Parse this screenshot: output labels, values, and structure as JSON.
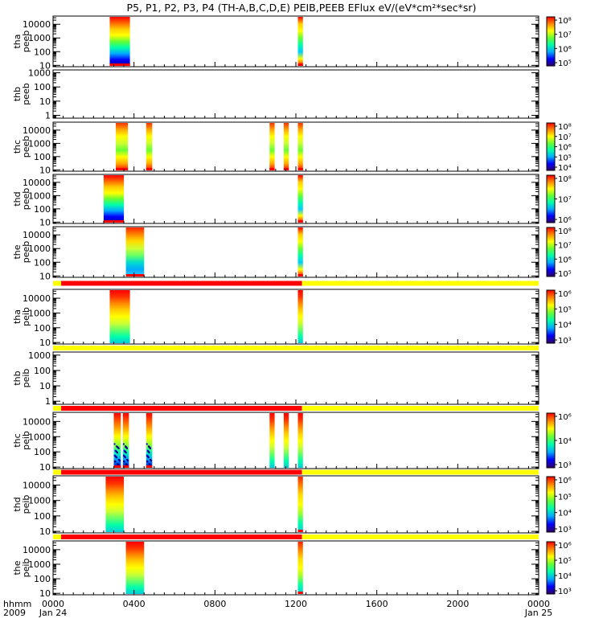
{
  "chart_data": {
    "type": "heatmap",
    "title": "P5, P1, P2, P3, P4 (TH-A,B,C,D,E) PEIB,PEEB EFlux eV/(eV*cm²*sec*sr)",
    "x_axis": {
      "label_prefix": "hhmm",
      "label_year": "2009",
      "range_hours": [
        0,
        24
      ],
      "ticks": [
        {
          "h": 0,
          "label": "0000",
          "sub": "Jan 24"
        },
        {
          "h": 4,
          "label": "0400",
          "sub": ""
        },
        {
          "h": 8,
          "label": "0800",
          "sub": ""
        },
        {
          "h": 12,
          "label": "1200",
          "sub": ""
        },
        {
          "h": 16,
          "label": "1600",
          "sub": ""
        },
        {
          "h": 20,
          "label": "2000",
          "sub": ""
        },
        {
          "h": 24,
          "label": "0000",
          "sub": "Jan 25"
        }
      ]
    },
    "colormap": [
      "#330066",
      "#0000ff",
      "#00aaff",
      "#00ffaa",
      "#66ff33",
      "#ffff00",
      "#ff8800",
      "#ff0000"
    ],
    "panels": [
      {
        "probe": "tha",
        "instrument": "peeb",
        "y_ticks": [
          "10000",
          "1000",
          "100",
          "10"
        ],
        "y_log_range": [
          0.9,
          4.6
        ],
        "colorbar": [
          "10⁸",
          "10⁷",
          "10⁶",
          "10⁵"
        ],
        "blocks": [
          {
            "t0": 2.8,
            "t1": 3.8,
            "style": "electron_grad"
          },
          {
            "t0": 12.1,
            "t1": 12.35,
            "style": "electron_narrow"
          }
        ],
        "flag_bar": null
      },
      {
        "probe": "thb",
        "instrument": "peeb",
        "y_ticks": [
          "1000",
          "100",
          "10",
          "1"
        ],
        "y_log_range": [
          -0.2,
          3.2
        ],
        "colorbar": null,
        "blocks": [],
        "flag_bar": null
      },
      {
        "probe": "thc",
        "instrument": "peeb",
        "y_ticks": [
          "10000",
          "1000",
          "100",
          "10"
        ],
        "y_log_range": [
          0.9,
          4.6
        ],
        "colorbar": [
          "10⁸",
          "10⁷",
          "10⁶",
          "10⁵",
          "10⁴"
        ],
        "blocks": [
          {
            "t0": 3.1,
            "t1": 3.7,
            "style": "electron_band"
          },
          {
            "t0": 4.6,
            "t1": 4.9,
            "style": "electron_band"
          },
          {
            "t0": 10.7,
            "t1": 10.95,
            "style": "electron_band"
          },
          {
            "t0": 11.4,
            "t1": 11.65,
            "style": "electron_band"
          },
          {
            "t0": 12.1,
            "t1": 12.35,
            "style": "electron_band"
          }
        ],
        "flag_bar": null
      },
      {
        "probe": "thd",
        "instrument": "peeb",
        "y_ticks": [
          "10000",
          "1000",
          "100",
          "10"
        ],
        "y_log_range": [
          0.9,
          4.6
        ],
        "colorbar": [
          "10⁸",
          "10⁷",
          "10⁶"
        ],
        "blocks": [
          {
            "t0": 2.5,
            "t1": 3.5,
            "style": "electron_grad"
          },
          {
            "t0": 12.1,
            "t1": 12.35,
            "style": "electron_narrow"
          }
        ],
        "flag_bar": null
      },
      {
        "probe": "the",
        "instrument": "peeb",
        "y_ticks": [
          "10000",
          "1000",
          "100",
          "10"
        ],
        "y_log_range": [
          0.9,
          4.6
        ],
        "colorbar": [
          "10⁸",
          "10⁷",
          "10⁶",
          "10⁵"
        ],
        "blocks": [
          {
            "t0": 3.6,
            "t1": 4.5,
            "style": "electron_soft"
          },
          {
            "t0": 12.1,
            "t1": 12.35,
            "style": "electron_narrow"
          }
        ],
        "flag_bar": {
          "segments": [
            {
              "t0": 0,
              "t1": 0.4,
              "color": "#ffff00"
            },
            {
              "t0": 0.4,
              "t1": 12.3,
              "color": "#ff0000"
            },
            {
              "t0": 12.3,
              "t1": 24,
              "color": "#ffff00"
            }
          ]
        }
      },
      {
        "probe": "tha",
        "instrument": "peib",
        "y_ticks": [
          "10000",
          "1000",
          "100",
          "10"
        ],
        "y_log_range": [
          0.9,
          4.6
        ],
        "colorbar": [
          "10⁶",
          "10⁵",
          "10⁴",
          "10³"
        ],
        "blocks": [
          {
            "t0": 2.8,
            "t1": 3.8,
            "style": "ion"
          },
          {
            "t0": 12.1,
            "t1": 12.35,
            "style": "ion"
          }
        ],
        "flag_bar": {
          "segments": [
            {
              "t0": 0,
              "t1": 24,
              "color": "#ffff00"
            }
          ]
        }
      },
      {
        "probe": "thb",
        "instrument": "peib",
        "y_ticks": [
          "1000",
          "100",
          "10",
          "1"
        ],
        "y_log_range": [
          -0.2,
          3.2
        ],
        "colorbar": null,
        "blocks": [],
        "flag_bar": {
          "segments": [
            {
              "t0": 0,
              "t1": 0.4,
              "color": "#ffff00"
            },
            {
              "t0": 0.4,
              "t1": 12.3,
              "color": "#ff0000"
            },
            {
              "t0": 12.3,
              "t1": 24,
              "color": "#ffff00"
            }
          ]
        }
      },
      {
        "probe": "thc",
        "instrument": "peib",
        "y_ticks": [
          "10000",
          "1000",
          "100",
          "10"
        ],
        "y_log_range": [
          0.9,
          4.6
        ],
        "colorbar": [
          "10⁶",
          "10⁴",
          "10³"
        ],
        "blocks": [
          {
            "t0": 3.0,
            "t1": 3.35,
            "style": "ion_speckle"
          },
          {
            "t0": 3.45,
            "t1": 3.75,
            "style": "ion_speckle"
          },
          {
            "t0": 4.6,
            "t1": 4.9,
            "style": "ion_speckle"
          },
          {
            "t0": 10.7,
            "t1": 10.95,
            "style": "ion"
          },
          {
            "t0": 11.4,
            "t1": 11.65,
            "style": "ion"
          },
          {
            "t0": 12.1,
            "t1": 12.35,
            "style": "ion"
          }
        ],
        "flag_bar": {
          "segments": [
            {
              "t0": 0,
              "t1": 0.4,
              "color": "#ffff00"
            },
            {
              "t0": 0.4,
              "t1": 12.3,
              "color": "#ff0000"
            },
            {
              "t0": 12.3,
              "t1": 24,
              "color": "#ffff00"
            }
          ]
        }
      },
      {
        "probe": "thd",
        "instrument": "peib",
        "y_ticks": [
          "10000",
          "1000",
          "100",
          "10"
        ],
        "y_log_range": [
          0.9,
          4.6
        ],
        "colorbar": [
          "10⁶",
          "10⁵",
          "10⁴",
          "10³"
        ],
        "blocks": [
          {
            "t0": 2.6,
            "t1": 3.5,
            "style": "ion"
          },
          {
            "t0": 12.1,
            "t1": 12.35,
            "style": "ion_narrow"
          }
        ],
        "flag_bar": {
          "segments": [
            {
              "t0": 0,
              "t1": 0.4,
              "color": "#ffff00"
            },
            {
              "t0": 0.4,
              "t1": 12.3,
              "color": "#ff0000"
            },
            {
              "t0": 12.3,
              "t1": 24,
              "color": "#ffff00"
            }
          ]
        }
      },
      {
        "probe": "the",
        "instrument": "peib",
        "y_ticks": [
          "10000",
          "1000",
          "100",
          "10"
        ],
        "y_log_range": [
          0.9,
          4.6
        ],
        "colorbar": [
          "10⁶",
          "10⁵",
          "10⁴",
          "10³"
        ],
        "blocks": [
          {
            "t0": 3.6,
            "t1": 4.5,
            "style": "ion"
          },
          {
            "t0": 12.1,
            "t1": 12.35,
            "style": "ion_narrow"
          }
        ],
        "flag_bar": null
      }
    ]
  }
}
